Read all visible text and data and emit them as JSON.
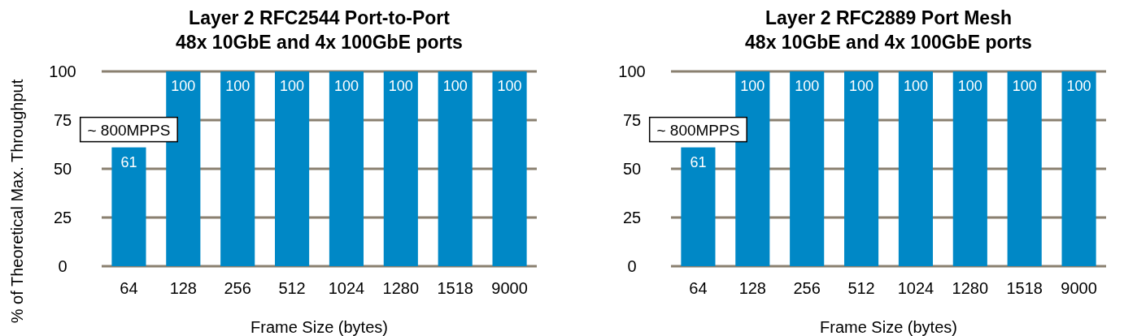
{
  "chart_data": [
    {
      "type": "bar",
      "title": "Layer 2 RFC2544 Port-to-Port",
      "subtitle": "48x 10GbE and 4x 100GbE ports",
      "xlabel": "Frame Size (bytes)",
      "ylabel": "% of Theoretical Max. Throughput",
      "categories": [
        "64",
        "128",
        "256",
        "512",
        "1024",
        "1280",
        "1518",
        "9000"
      ],
      "values": [
        61,
        100,
        100,
        100,
        100,
        100,
        100,
        100
      ],
      "color": "#0088c6",
      "ylim": [
        0,
        100
      ],
      "yticks": [
        0,
        25,
        50,
        75,
        100
      ],
      "grid": "y",
      "data_labels": true,
      "annotations": [
        "~ 800MPPS"
      ]
    },
    {
      "type": "bar",
      "title": "Layer 2 RFC2889 Port Mesh",
      "subtitle": "48x 10GbE and 4x 100GbE ports",
      "xlabel": "Frame Size (bytes)",
      "categories": [
        "64",
        "128",
        "256",
        "512",
        "1024",
        "1280",
        "1518",
        "9000"
      ],
      "values": [
        61,
        100,
        100,
        100,
        100,
        100,
        100,
        100
      ],
      "color": "#0088c6",
      "ylim": [
        0,
        100
      ],
      "yticks": [
        0,
        25,
        50,
        75,
        100
      ],
      "grid": "y",
      "data_labels": true,
      "annotations": [
        "~ 800MPPS"
      ]
    }
  ]
}
